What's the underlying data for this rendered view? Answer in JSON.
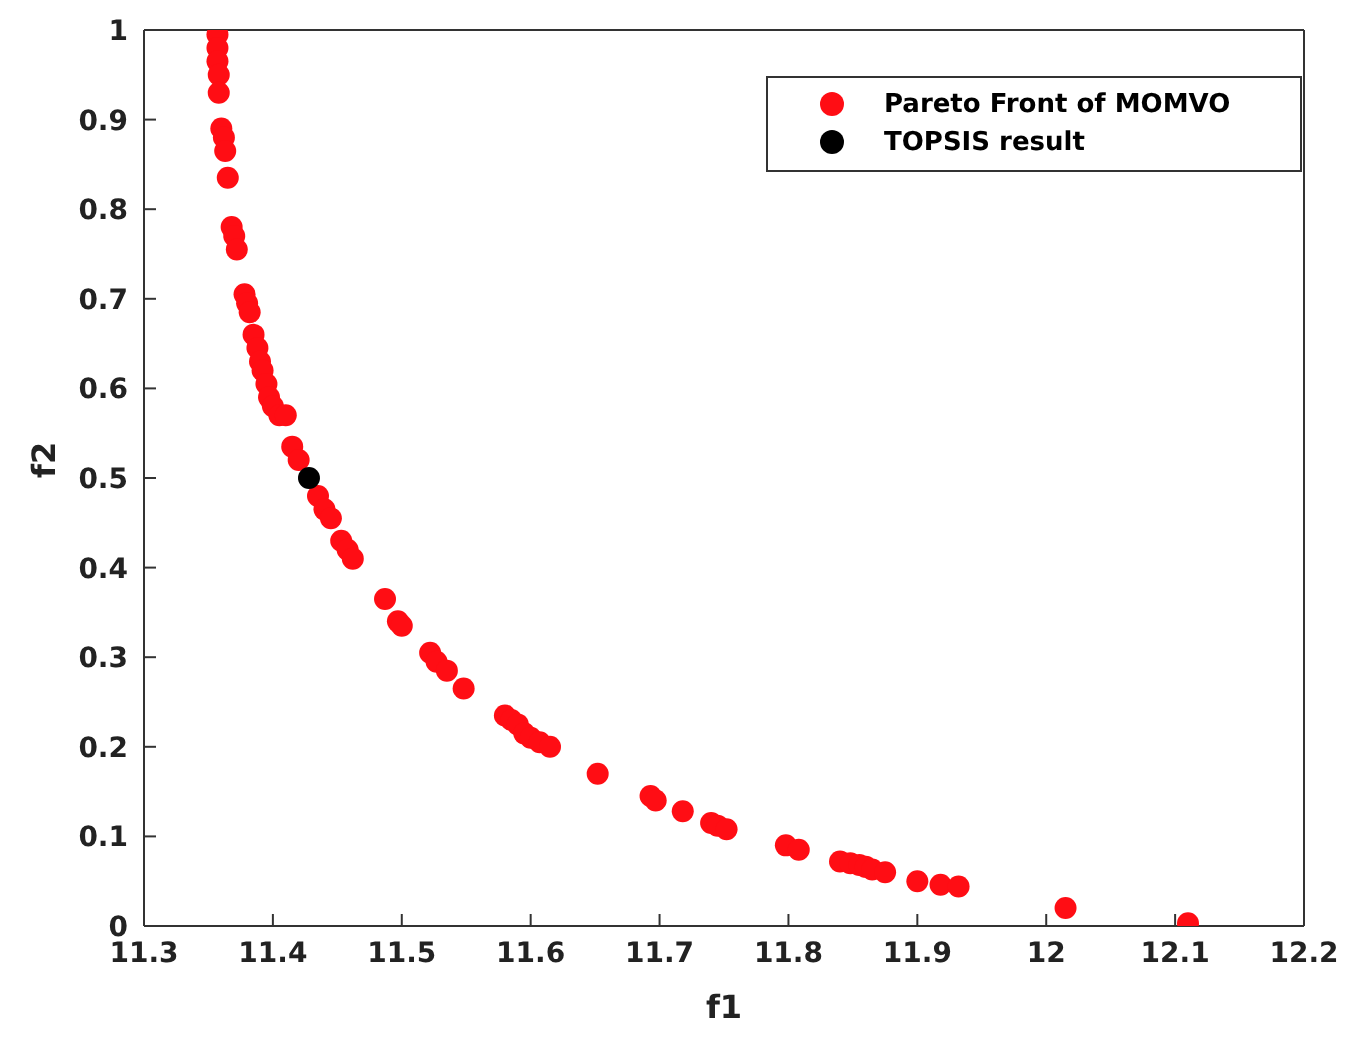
{
  "chart_data": {
    "type": "scatter",
    "xlabel": "f1",
    "ylabel": "f2",
    "xlim": [
      11.3,
      12.2
    ],
    "xticks": [
      11.3,
      11.4,
      11.5,
      11.6,
      11.7,
      11.8,
      11.9,
      12,
      12.1,
      12.2
    ],
    "ylim": [
      0,
      1
    ],
    "yticks": [
      0,
      0.1,
      0.2,
      0.3,
      0.4,
      0.5,
      0.6,
      0.7,
      0.8,
      0.9,
      1
    ],
    "legend": "top right",
    "marker": "circle",
    "series": [
      {
        "name": "Pareto Front of MOMVO",
        "color": "#ff0d14",
        "x": [
          11.357,
          11.357,
          11.357,
          11.358,
          11.358,
          11.36,
          11.362,
          11.363,
          11.365,
          11.368,
          11.37,
          11.372,
          11.378,
          11.38,
          11.382,
          11.385,
          11.388,
          11.39,
          11.392,
          11.395,
          11.397,
          11.4,
          11.405,
          11.41,
          11.415,
          11.42,
          11.435,
          11.44,
          11.445,
          11.453,
          11.458,
          11.462,
          11.487,
          11.497,
          11.5,
          11.522,
          11.527,
          11.535,
          11.548,
          11.58,
          11.585,
          11.59,
          11.595,
          11.6,
          11.607,
          11.615,
          11.652,
          11.693,
          11.697,
          11.718,
          11.74,
          11.745,
          11.752,
          11.798,
          11.808,
          11.84,
          11.848,
          11.855,
          11.86,
          11.865,
          11.875,
          11.9,
          11.918,
          11.932,
          12.015,
          12.11
        ],
        "values": [
          0.995,
          0.98,
          0.965,
          0.95,
          0.93,
          0.89,
          0.88,
          0.865,
          0.835,
          0.78,
          0.77,
          0.755,
          0.705,
          0.695,
          0.685,
          0.66,
          0.645,
          0.63,
          0.62,
          0.605,
          0.59,
          0.58,
          0.57,
          0.57,
          0.535,
          0.52,
          0.48,
          0.465,
          0.455,
          0.43,
          0.42,
          0.41,
          0.365,
          0.34,
          0.335,
          0.305,
          0.295,
          0.285,
          0.265,
          0.235,
          0.23,
          0.225,
          0.215,
          0.21,
          0.205,
          0.2,
          0.17,
          0.145,
          0.14,
          0.128,
          0.115,
          0.112,
          0.108,
          0.09,
          0.085,
          0.072,
          0.07,
          0.068,
          0.066,
          0.063,
          0.06,
          0.05,
          0.046,
          0.044,
          0.02,
          0.003
        ]
      },
      {
        "name": "TOPSIS result",
        "color": "#000000",
        "x": [
          11.428
        ],
        "values": [
          0.5
        ]
      }
    ]
  }
}
